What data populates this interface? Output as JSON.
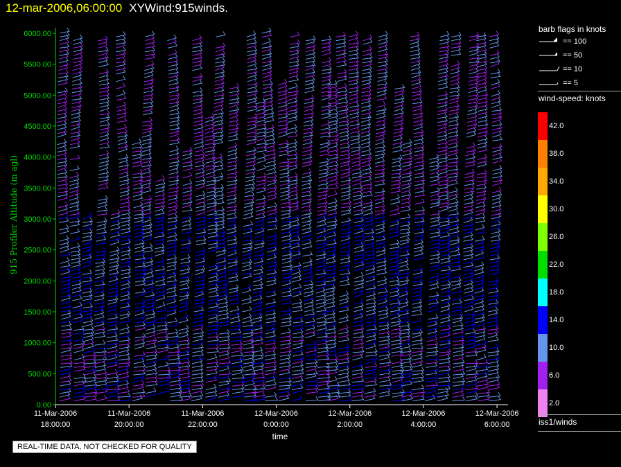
{
  "header": {
    "timestamp": "12-mar-2006,06:00:00",
    "plot_name": "XYWind:915winds."
  },
  "qc_notice": "REAL-TIME DATA, NOT CHECKED FOR QUALITY",
  "side_panel": {
    "barb_title": "barb flags in knots",
    "barb_flags": [
      "== 100",
      "== 50",
      "== 10",
      "== 5"
    ],
    "speed_title": "wind-speed: knots",
    "color_scale": [
      {
        "label": "42.0",
        "color": "#ff0000"
      },
      {
        "label": "38.0",
        "color": "#ff7f00"
      },
      {
        "label": "34.0",
        "color": "#ffaa00"
      },
      {
        "label": "30.0",
        "color": "#ffff00"
      },
      {
        "label": "26.0",
        "color": "#80ff00"
      },
      {
        "label": "22.0",
        "color": "#00e000"
      },
      {
        "label": "18.0",
        "color": "#00ffff"
      },
      {
        "label": "14.0",
        "color": "#0000ff"
      },
      {
        "label": "10.0",
        "color": "#6495ed"
      },
      {
        "label": "6.0",
        "color": "#a020f0"
      },
      {
        "label": "2.0",
        "color": "#ee82ee"
      }
    ],
    "source": "iss1/winds"
  },
  "chart_data": {
    "type": "wind-barb time-height plot",
    "xlabel": "time",
    "ylabel": "915 Profiler Altitude (m agl)",
    "ylim": [
      0,
      6000
    ],
    "yticks": [
      "0.00",
      "500.00",
      "1000.00",
      "1500.00",
      "2000.00",
      "2500.00",
      "3000.00",
      "3500.00",
      "4000.00",
      "4500.00",
      "5000.00",
      "5500.00",
      "6000.00"
    ],
    "xticks": [
      {
        "date": "11-Mar-2006",
        "time": "18:00:00",
        "hours": 0
      },
      {
        "date": "11-Mar-2006",
        "time": "20:00:00",
        "hours": 2
      },
      {
        "date": "11-Mar-2006",
        "time": "22:00:00",
        "hours": 4
      },
      {
        "date": "12-Mar-2006",
        "time": "0:00:00",
        "hours": 6
      },
      {
        "date": "12-Mar-2006",
        "time": "2:00:00",
        "hours": 8
      },
      {
        "date": "12-Mar-2006",
        "time": "4:00:00",
        "hours": 10
      },
      {
        "date": "12-Mar-2006",
        "time": "6:00:00",
        "hours": 12
      }
    ],
    "xlim_hours": [
      0,
      12.3
    ],
    "profile_hours": [
      0.1,
      0.45,
      0.75,
      1.1,
      1.45,
      1.75,
      2.1,
      2.4,
      2.75,
      3.1,
      3.4,
      3.75,
      4.1,
      4.4,
      4.75,
      5.1,
      5.4,
      5.75,
      6.1,
      6.4,
      6.75,
      7.1,
      7.4,
      7.75,
      8.1,
      8.4,
      8.75,
      9.1,
      9.4,
      9.75,
      10.1,
      10.4,
      10.75,
      11.1,
      11.45,
      11.8
    ],
    "profile_top_m": [
      6000,
      5900,
      3000,
      5900,
      3100,
      5950,
      4200,
      5950,
      3650,
      5950,
      4100,
      5900,
      4700,
      5950,
      5100,
      5950,
      4900,
      6000,
      5200,
      5950,
      5900,
      5950,
      5200,
      5950,
      5950,
      5900,
      5950,
      5100,
      4200,
      5950,
      4000,
      5950,
      5950,
      5950,
      5950,
      5950
    ],
    "speed_bands_knots": [
      {
        "below_m": 1200,
        "speed": 10
      },
      {
        "below_m": 3000,
        "speed": 12
      },
      {
        "below_m": 6000,
        "speed": 8
      }
    ],
    "direction": "predominantly westerly to southwesterly aloft"
  }
}
